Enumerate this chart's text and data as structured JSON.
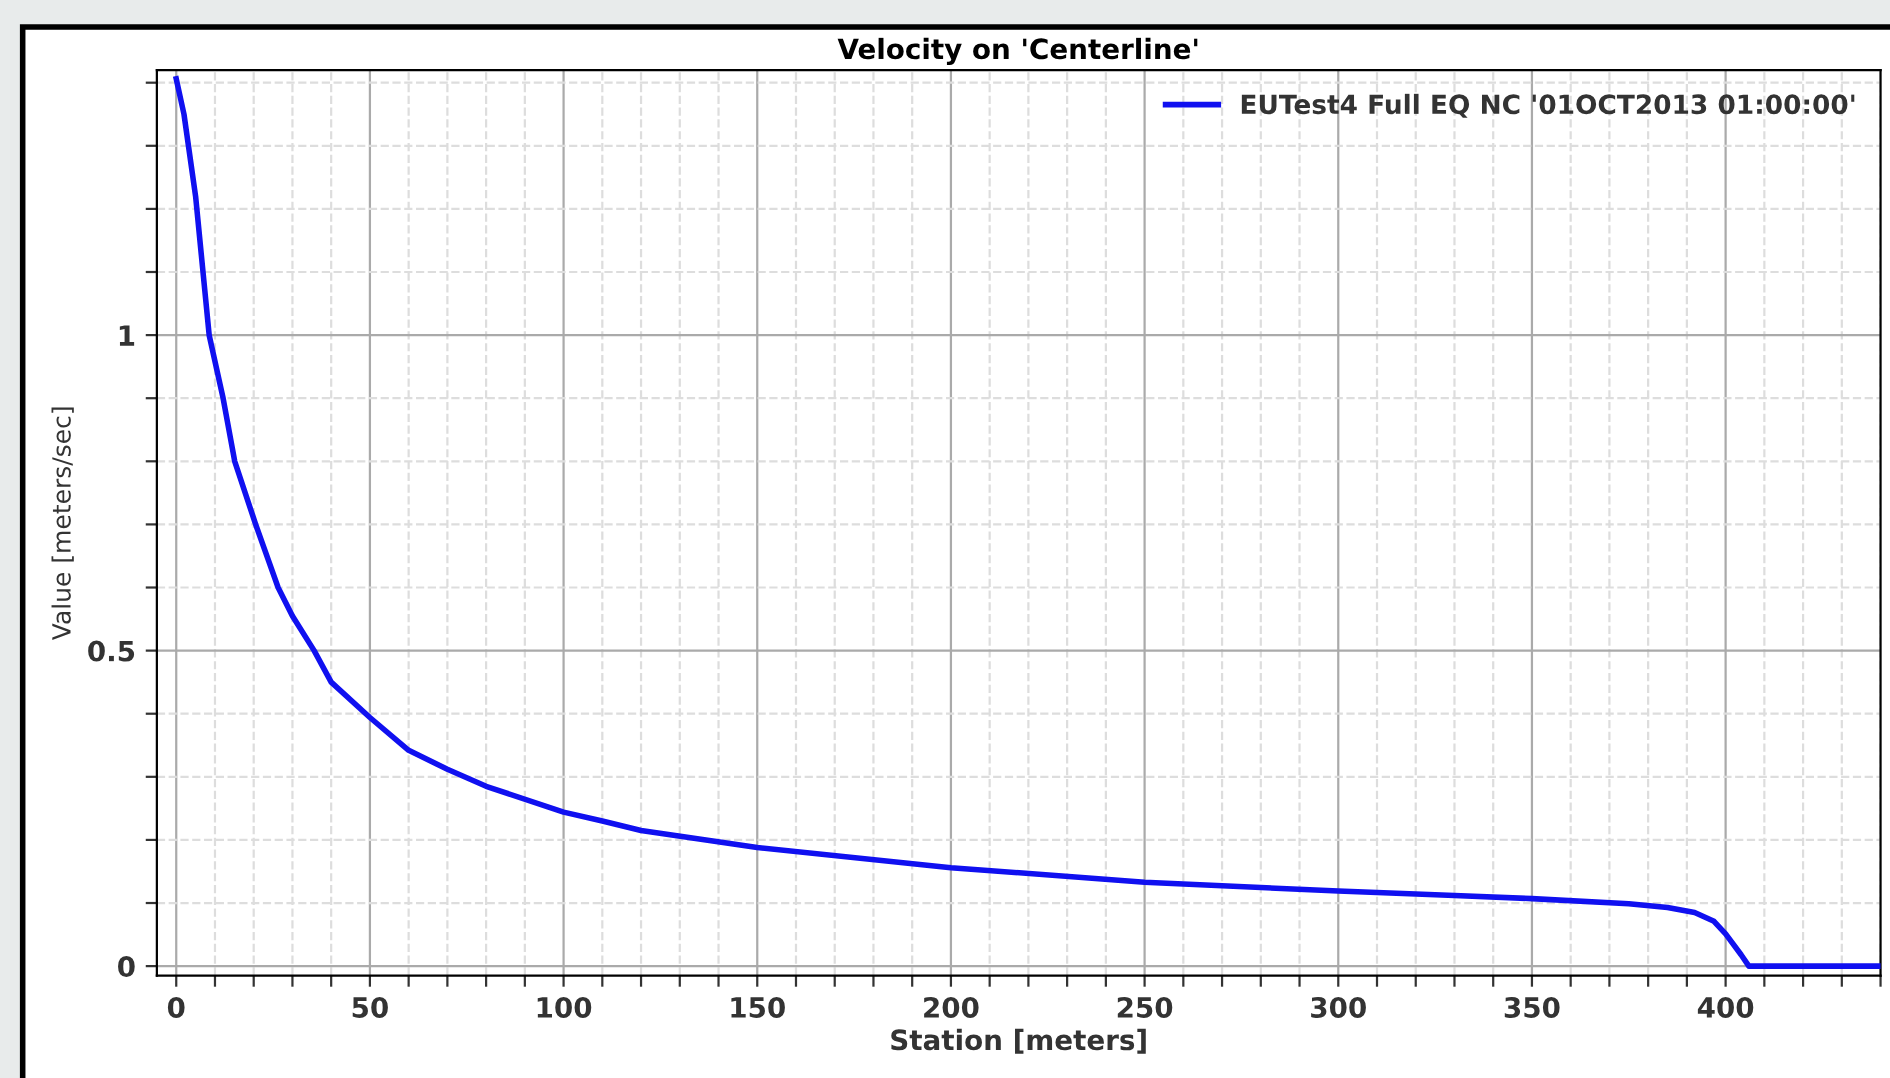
{
  "chart_data": {
    "type": "line",
    "title": "Velocity on 'Centerline'",
    "xlabel": "Station [meters]",
    "ylabel": "Value [meters/sec]",
    "x": [
      0,
      2,
      5,
      8.5,
      12.1,
      15.1,
      20.5,
      26.3,
      30,
      35.6,
      40,
      50,
      60,
      70,
      80,
      100,
      110,
      120,
      150,
      200,
      250,
      300,
      330,
      350,
      375,
      385,
      392,
      397,
      400,
      404,
      406,
      440
    ],
    "series": [
      {
        "name": "EUTest4 Full EQ NC '01OCT2013 01:00:00'",
        "color": "#1010f0",
        "values": [
          1.406,
          1.35,
          1.22,
          1.0,
          0.9,
          0.8,
          0.7,
          0.6,
          0.555,
          0.5,
          0.45,
          0.394,
          0.342,
          0.312,
          0.285,
          0.244,
          0.23,
          0.215,
          0.188,
          0.156,
          0.133,
          0.119,
          0.112,
          0.107,
          0.099,
          0.093,
          0.085,
          0.071,
          0.051,
          0.018,
          0,
          0
        ]
      }
    ],
    "xlim": [
      -5,
      440
    ],
    "ylim": [
      -0.015,
      1.42
    ],
    "xticks": [
      0,
      {
        "value": 10,
        "label": null
      },
      {
        "value": 20,
        "label": null
      },
      {
        "value": 30,
        "label": null
      },
      {
        "value": 40,
        "label": null
      },
      50,
      {
        "value": 60,
        "label": null
      },
      {
        "value": 70,
        "label": null
      },
      {
        "value": 80,
        "label": null
      },
      {
        "value": 90,
        "label": null
      },
      100,
      {
        "value": 110,
        "label": null
      },
      {
        "value": 120,
        "label": null
      },
      {
        "value": 130,
        "label": null
      },
      {
        "value": 140,
        "label": null
      },
      150,
      {
        "value": 160,
        "label": null
      },
      {
        "value": 170,
        "label": null
      },
      {
        "value": 180,
        "label": null
      },
      {
        "value": 190,
        "label": null
      },
      200,
      {
        "value": 210,
        "label": null
      },
      {
        "value": 220,
        "label": null
      },
      {
        "value": 230,
        "label": null
      },
      {
        "value": 240,
        "label": null
      },
      250,
      {
        "value": 260,
        "label": null
      },
      {
        "value": 270,
        "label": null
      },
      {
        "value": 280,
        "label": null
      },
      {
        "value": 290,
        "label": null
      },
      300,
      {
        "value": 310,
        "label": null
      },
      {
        "value": 320,
        "label": null
      },
      {
        "value": 330,
        "label": null
      },
      {
        "value": 340,
        "label": null
      },
      350,
      {
        "value": 360,
        "label": null
      },
      {
        "value": 370,
        "label": null
      },
      {
        "value": 380,
        "label": null
      },
      {
        "value": 390,
        "label": null
      },
      400,
      {
        "value": 410,
        "label": null
      },
      {
        "value": 420,
        "label": null
      },
      {
        "value": 430,
        "label": null
      },
      {
        "value": 440,
        "label": null
      }
    ],
    "yticks": [
      0,
      {
        "value": 0.1,
        "label": null
      },
      {
        "value": 0.2,
        "label": null
      },
      {
        "value": 0.3,
        "label": null
      },
      {
        "value": 0.4,
        "label": null
      },
      0.5,
      {
        "value": 0.6,
        "label": null
      },
      {
        "value": 0.7,
        "label": null
      },
      {
        "value": 0.8,
        "label": null
      },
      {
        "value": 0.9,
        "label": null
      },
      1,
      {
        "value": 1.1,
        "label": null
      },
      {
        "value": 1.2,
        "label": null
      },
      {
        "value": 1.3,
        "label": null
      },
      {
        "value": 1.4,
        "label": null
      }
    ],
    "grid": true,
    "legend": "top right",
    "line_style": "solid",
    "marker": "none"
  }
}
